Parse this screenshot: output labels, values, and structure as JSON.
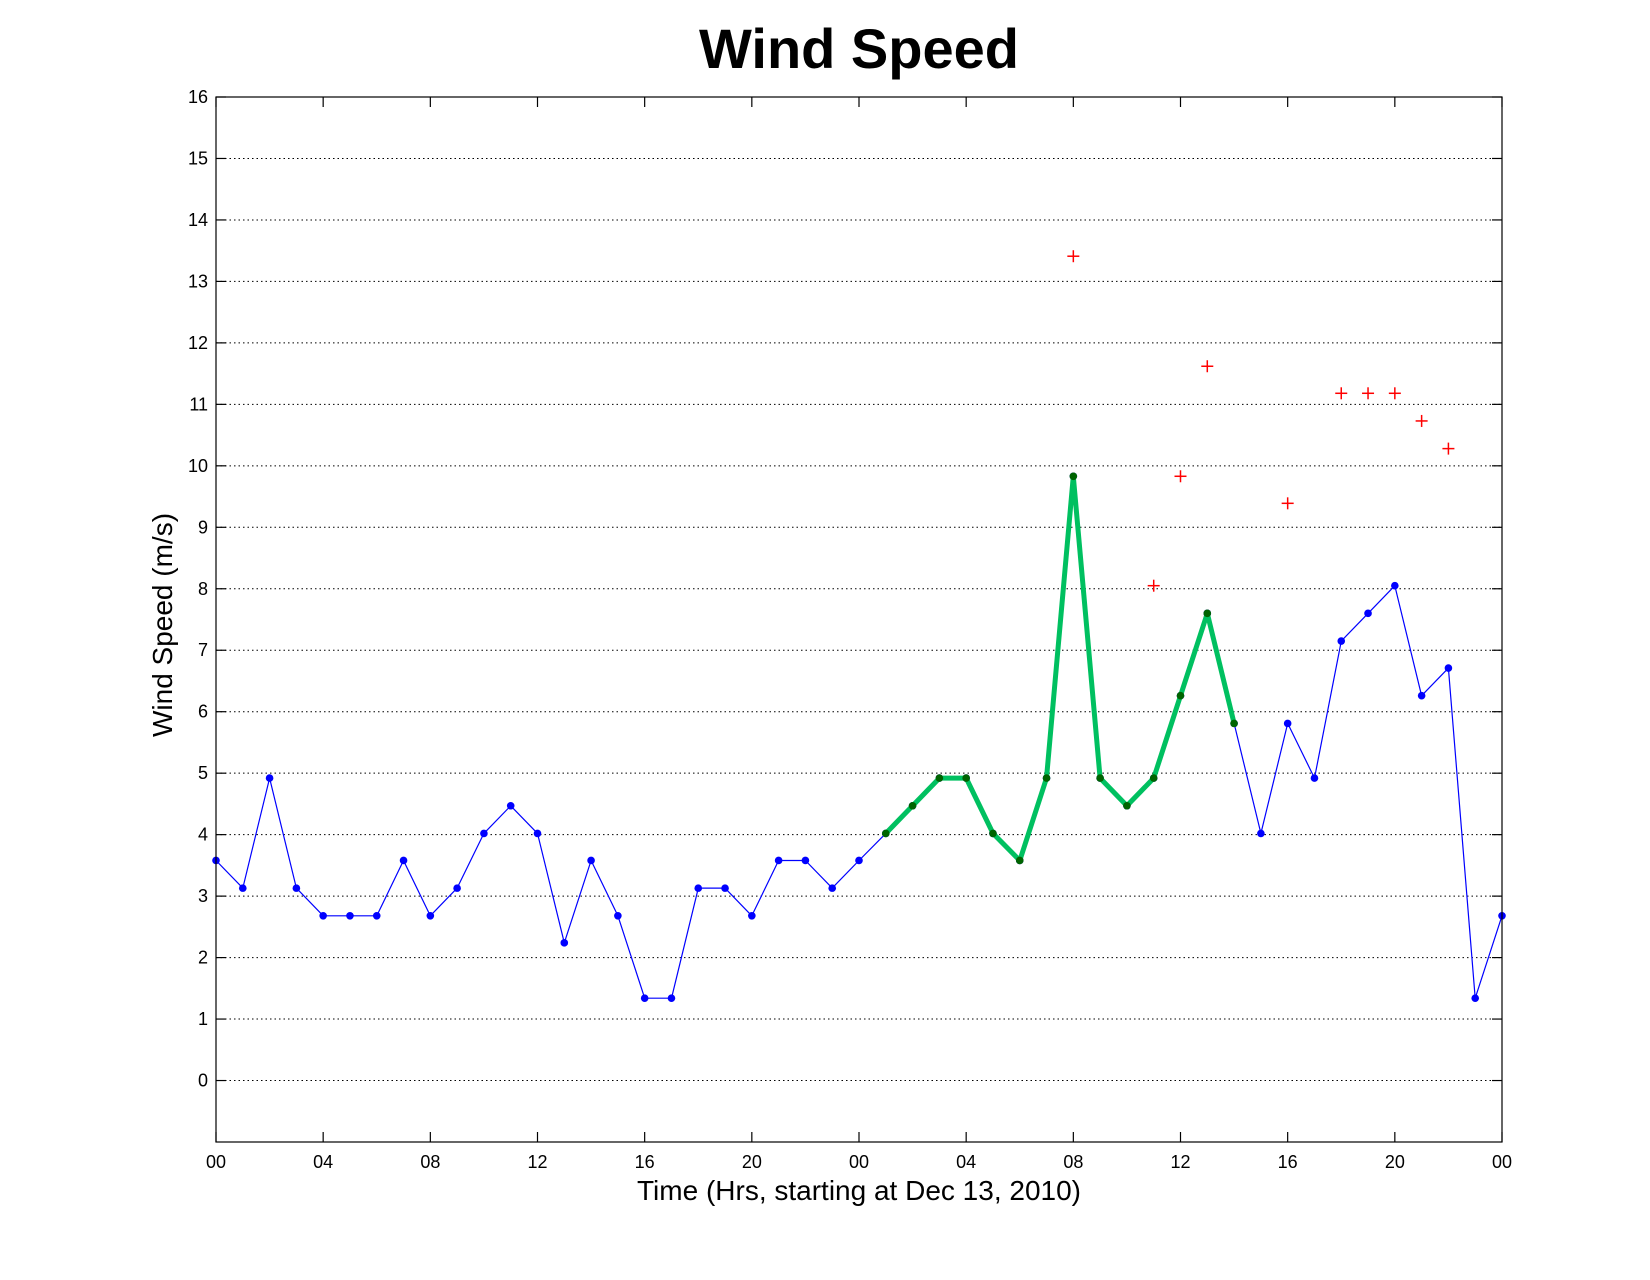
{
  "chart_data": {
    "type": "line",
    "title": "Wind Speed",
    "xlabel": "Time (Hrs, starting at Dec 13, 2010)",
    "ylabel": "Wind Speed (m/s)",
    "xlim": [
      0,
      48
    ],
    "ylim": [
      -1,
      16
    ],
    "grid": true,
    "legend": "none",
    "x_ticks": [
      {
        "x": 0,
        "label": "00"
      },
      {
        "x": 4,
        "label": "04"
      },
      {
        "x": 8,
        "label": "08"
      },
      {
        "x": 12,
        "label": "12"
      },
      {
        "x": 16,
        "label": "16"
      },
      {
        "x": 20,
        "label": "20"
      },
      {
        "x": 24,
        "label": "00"
      },
      {
        "x": 28,
        "label": "04"
      },
      {
        "x": 32,
        "label": "08"
      },
      {
        "x": 36,
        "label": "12"
      },
      {
        "x": 40,
        "label": "16"
      },
      {
        "x": 44,
        "label": "20"
      },
      {
        "x": 48,
        "label": "00"
      }
    ],
    "y_ticks": [
      0,
      1,
      2,
      3,
      4,
      5,
      6,
      7,
      8,
      9,
      10,
      11,
      12,
      13,
      14,
      15,
      16
    ],
    "series": [
      {
        "style": "thin-line-dots",
        "color": "#0000ff",
        "x": [
          0,
          1,
          2,
          3,
          4,
          5,
          6,
          7,
          8,
          9,
          10,
          11,
          12,
          13,
          14,
          15,
          16,
          17,
          18,
          19,
          20,
          21,
          22,
          23,
          24,
          25,
          26,
          27,
          28,
          29,
          30,
          31,
          32,
          33,
          34,
          35,
          36,
          37,
          38,
          39,
          40,
          41,
          42,
          43,
          44,
          45,
          46,
          47,
          48
        ],
        "y": [
          3.58,
          3.13,
          4.92,
          3.13,
          2.68,
          2.68,
          2.68,
          3.58,
          2.68,
          3.13,
          4.02,
          4.47,
          4.02,
          2.24,
          3.58,
          2.68,
          1.34,
          1.34,
          3.13,
          3.13,
          2.68,
          3.58,
          3.58,
          3.13,
          3.58,
          4.02,
          4.47,
          4.92,
          4.92,
          4.02,
          3.58,
          4.92,
          9.83,
          4.92,
          4.47,
          4.92,
          6.26,
          7.6,
          5.81,
          4.02,
          5.81,
          4.92,
          7.15,
          7.6,
          8.05,
          6.26,
          6.71,
          1.34,
          2.68
        ]
      },
      {
        "style": "thick-line-dots",
        "color": "#00c060",
        "marker_color": "#006400",
        "x": [
          25,
          26,
          27,
          28,
          29,
          30,
          31,
          32,
          33,
          34,
          35,
          36,
          37,
          38
        ],
        "y": [
          4.02,
          4.47,
          4.92,
          4.92,
          4.02,
          3.58,
          4.92,
          9.83,
          4.92,
          4.47,
          4.92,
          6.26,
          7.6,
          5.81
        ]
      },
      {
        "style": "plus-markers",
        "color": "#ff0000",
        "x": [
          32,
          35,
          36,
          37,
          40,
          42,
          43,
          44,
          45,
          46
        ],
        "y": [
          13.41,
          8.05,
          9.83,
          11.62,
          9.39,
          11.18,
          11.18,
          11.18,
          10.73,
          10.28
        ]
      }
    ]
  }
}
